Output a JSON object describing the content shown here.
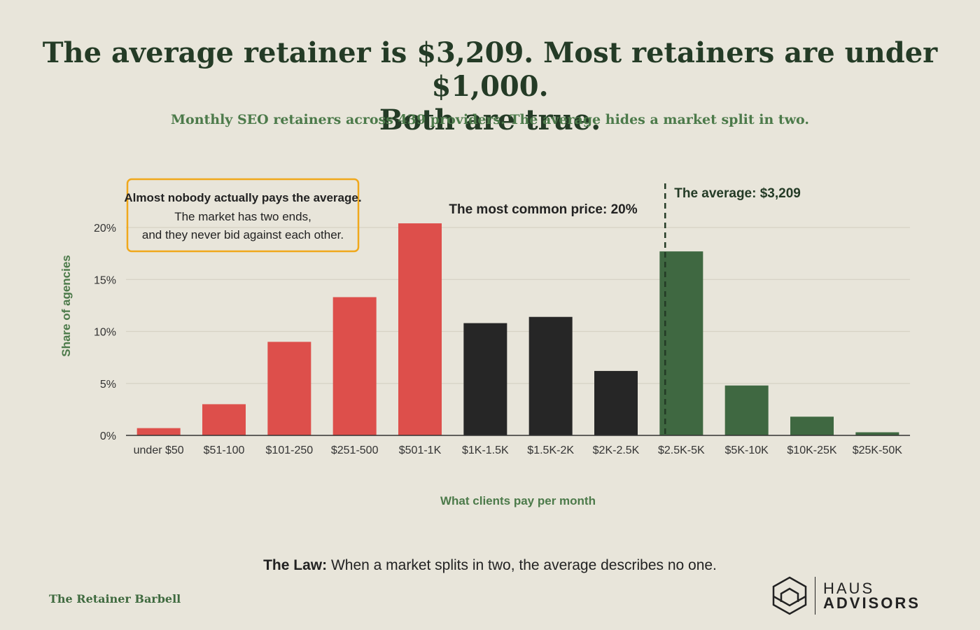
{
  "header": {
    "title_line1": "The average retainer is $3,209. Most retainers are under $1,000.",
    "title_line2": "Both are true.",
    "subtitle": "Monthly SEO retainers across 439 providers. The average hides a market split in two."
  },
  "chart_data": {
    "type": "bar",
    "categories": [
      "under $50",
      "$51-100",
      "$101-250",
      "$251-500",
      "$501-1K",
      "$1K-1.5K",
      "$1.5K-2K",
      "$2K-2.5K",
      "$2.5K-5K",
      "$5K-10K",
      "$10K-25K",
      "$25K-50K"
    ],
    "values": [
      0.7,
      3.0,
      9.0,
      13.3,
      20.4,
      10.8,
      11.4,
      6.2,
      17.7,
      4.8,
      1.8,
      0.3
    ],
    "groups": [
      "low",
      "low",
      "low",
      "low",
      "low",
      "mid",
      "mid",
      "mid",
      "high",
      "high",
      "high",
      "high"
    ],
    "group_colors": {
      "low": "#dd4f4b",
      "mid": "#262626",
      "high": "#3f6841"
    },
    "xlabel": "What clients pay per month",
    "ylabel": "Share of agencies",
    "ylim": [
      0,
      20
    ],
    "yticks": [
      0,
      5,
      10,
      15,
      20
    ],
    "ytick_labels": [
      "0%",
      "5%",
      "10%",
      "15%",
      "20%"
    ],
    "grid": true,
    "average_line": {
      "label": "The average: $3,209",
      "category_index": 8
    },
    "annotations": {
      "mode": "The most common price: 20%",
      "box_title": "Almost nobody actually pays the average.",
      "box_line1": "The market has two ends,",
      "box_line2": "and they never bid against each other."
    }
  },
  "footer": {
    "law_label": "The Law:",
    "law_text": " When a market splits in two, the average describes no one.",
    "series_name": "The Retainer Barbell",
    "logo_line1": "HAUS",
    "logo_line2": "ADVISORS",
    "logo_icon": "hexagon-house-icon"
  },
  "colors": {
    "background": "#e8e5da",
    "title": "#243b26",
    "accent_green": "#4c7a4a",
    "callout_border": "#f0a81c"
  }
}
